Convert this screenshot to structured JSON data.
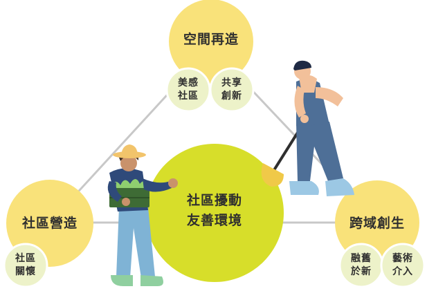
{
  "diagram": {
    "center": {
      "label": "社區擾動\n友善環境"
    },
    "nodes": {
      "top": {
        "label": "空間再造",
        "children": [
          "美感\n社區",
          "共享\n創新"
        ]
      },
      "left": {
        "label": "社區營造",
        "children": [
          "社區\n關懷"
        ]
      },
      "right": {
        "label": "跨域創生",
        "children": [
          "融舊\n於新",
          "藝術\n介入"
        ]
      }
    },
    "colors": {
      "main_circle": "#f9e27a",
      "center_circle": "#d7de2a",
      "sub_circle": "#edf2c9",
      "connector": "#c8c8c8",
      "text": "#2f2f2f"
    },
    "illustrations": [
      "farmer-with-vegetable-crate",
      "worker-with-shovel"
    ]
  }
}
